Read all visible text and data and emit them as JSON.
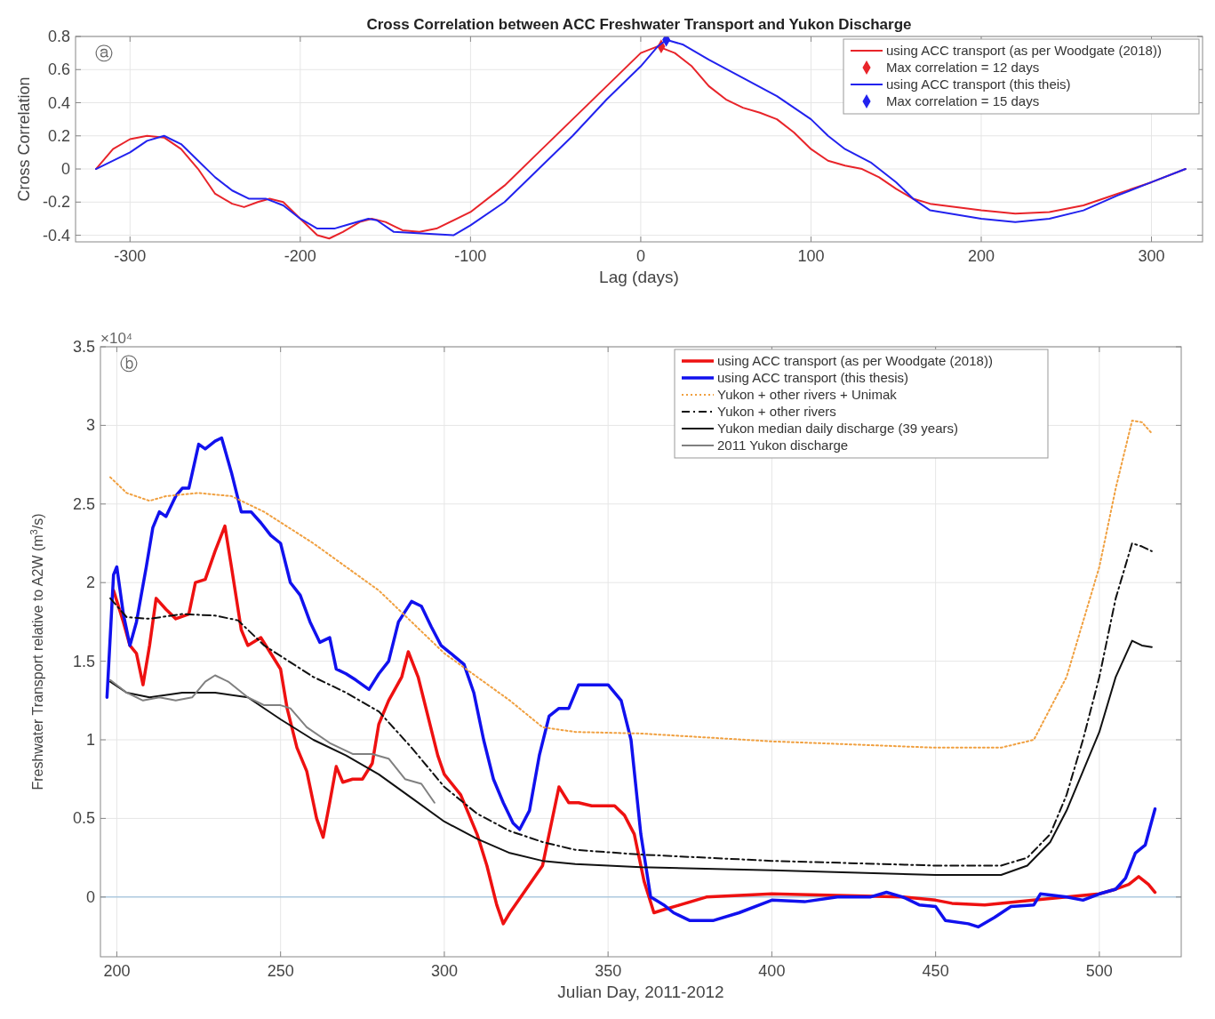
{
  "chart_data": [
    {
      "type": "line",
      "title": "Cross Correlation between ACC Freshwater Transport and Yukon Discharge",
      "xlabel": "Lag (days)",
      "ylabel": "Cross Correlation",
      "xlim": [
        -332,
        330
      ],
      "ylim": [
        -0.44,
        0.8
      ],
      "xticks": [
        -300,
        -200,
        -100,
        0,
        100,
        200,
        300
      ],
      "yticks": [
        -0.4,
        -0.2,
        0,
        0.2,
        0.4,
        0.6,
        0.8
      ],
      "grid": true,
      "legend": "top right",
      "annotations": [
        "ⓐ"
      ],
      "series": [
        {
          "name": "using ACC transport (as per Woodgate (2018))",
          "color": "#e8242a",
          "x": [
            -320,
            -310,
            -300,
            -290,
            -280,
            -270,
            -260,
            -250,
            -240,
            -233,
            -225,
            -218,
            -210,
            -200,
            -190,
            -183,
            -175,
            -165,
            -158,
            -150,
            -140,
            -130,
            -120,
            -100,
            -80,
            -60,
            -40,
            -20,
            0,
            10,
            20,
            30,
            40,
            50,
            60,
            70,
            80,
            90,
            100,
            110,
            120,
            130,
            140,
            150,
            160,
            170,
            200,
            220,
            240,
            260,
            280,
            300,
            320
          ],
          "values": [
            0,
            0.12,
            0.18,
            0.2,
            0.19,
            0.12,
            0,
            -0.15,
            -0.21,
            -0.23,
            -0.2,
            -0.18,
            -0.2,
            -0.3,
            -0.4,
            -0.42,
            -0.38,
            -0.32,
            -0.3,
            -0.32,
            -0.37,
            -0.38,
            -0.36,
            -0.26,
            -0.1,
            0.1,
            0.3,
            0.5,
            0.7,
            0.74,
            0.7,
            0.62,
            0.5,
            0.42,
            0.37,
            0.34,
            0.3,
            0.22,
            0.12,
            0.05,
            0.02,
            0,
            -0.05,
            -0.12,
            -0.18,
            -0.21,
            -0.25,
            -0.27,
            -0.26,
            -0.22,
            -0.15,
            -0.08,
            0
          ]
        },
        {
          "name": "Max correlation = 12 days",
          "type": "scatter",
          "marker": "diamond",
          "color": "#e8242a",
          "x": [
            12
          ],
          "values": [
            0.74
          ]
        },
        {
          "name": "using ACC transport (this theis)",
          "color": "#2222ee",
          "x": [
            -320,
            -300,
            -290,
            -280,
            -270,
            -260,
            -250,
            -240,
            -230,
            -220,
            -210,
            -200,
            -190,
            -180,
            -170,
            -160,
            -155,
            -145,
            -135,
            -120,
            -110,
            -100,
            -80,
            -60,
            -40,
            -20,
            0,
            10,
            15,
            25,
            40,
            60,
            80,
            100,
            110,
            120,
            135,
            150,
            160,
            170,
            200,
            220,
            240,
            260,
            280,
            300,
            320
          ],
          "values": [
            0,
            0.1,
            0.17,
            0.2,
            0.15,
            0.05,
            -0.05,
            -0.13,
            -0.18,
            -0.18,
            -0.22,
            -0.3,
            -0.36,
            -0.36,
            -0.33,
            -0.3,
            -0.31,
            -0.38,
            null,
            null,
            -0.4,
            -0.34,
            -0.2,
            0,
            0.2,
            0.42,
            0.62,
            0.74,
            0.78,
            0.75,
            0.66,
            0.55,
            0.44,
            0.3,
            0.2,
            0.12,
            0.04,
            -0.08,
            -0.18,
            -0.25,
            -0.3,
            -0.32,
            -0.3,
            -0.25,
            -0.16,
            -0.08,
            0
          ]
        },
        {
          "name": "Max correlation = 15 days",
          "type": "scatter",
          "marker": "diamond",
          "color": "#2222ee",
          "x": [
            15
          ],
          "values": [
            0.78
          ]
        }
      ]
    },
    {
      "type": "line",
      "xlabel": "Julian Day, 2011-2012",
      "ylabel": "Freshwater Transport relative to A2W (m$^{3}$/s)",
      "xlim": [
        195,
        525
      ],
      "ylim": [
        -0.38,
        3.5
      ],
      "xticks": [
        200,
        250,
        300,
        350,
        400,
        450,
        500
      ],
      "yticks": [
        0,
        0.5,
        1,
        1.5,
        2,
        2.5,
        3,
        3.5
      ],
      "grid": true,
      "legend": "top right",
      "annotations": [
        "×10⁴",
        "ⓑ"
      ],
      "ref_lines": [
        {
          "axis": "y",
          "value": 0,
          "color": "#8fb8d8"
        }
      ],
      "series": [
        {
          "name": "using ACC transport (as per Woodgate (2018))",
          "color": "#ee1111",
          "x": [
            199,
            202,
            204,
            206,
            208,
            210,
            212,
            215,
            218,
            222,
            224,
            227,
            230,
            233,
            235,
            238,
            240,
            244,
            247,
            250,
            252,
            255,
            258,
            261,
            263,
            265,
            267,
            269,
            272,
            275,
            278,
            280,
            283,
            287,
            289,
            292,
            295,
            298,
            300,
            305,
            310,
            313,
            316,
            318,
            320,
            325,
            330,
            333,
            335,
            338,
            341,
            345,
            352,
            355,
            358,
            361,
            364,
            367,
            372,
            380,
            400,
            420,
            440,
            450,
            455,
            465,
            480,
            490,
            500,
            505,
            509,
            512,
            515,
            517
          ],
          "values": [
            1.95,
            1.75,
            1.6,
            1.55,
            1.35,
            1.6,
            1.9,
            1.83,
            1.77,
            1.8,
            2,
            2.02,
            2.2,
            2.36,
            2.1,
            1.7,
            1.6,
            1.65,
            1.55,
            1.45,
            1.2,
            0.95,
            0.8,
            0.5,
            0.38,
            0.6,
            0.83,
            0.73,
            0.75,
            0.75,
            0.85,
            1.1,
            1.25,
            1.4,
            1.56,
            1.4,
            1.15,
            0.9,
            0.78,
            0.65,
            0.4,
            0.2,
            -0.05,
            -0.17,
            -0.1,
            0.05,
            0.2,
            0.5,
            0.7,
            0.6,
            0.6,
            0.58,
            0.58,
            0.52,
            0.4,
            0.1,
            -0.1,
            -0.08,
            -0.05,
            0,
            0.02,
            0.01,
            0,
            -0.02,
            -0.04,
            -0.05,
            -0.02,
            0,
            0.02,
            0.05,
            0.08,
            0.13,
            0.08,
            0.03
          ]
        },
        {
          "name": "using ACC transport (this thesis)",
          "color": "#1111ee",
          "x": [
            197,
            199,
            200,
            202,
            204,
            206,
            209,
            211,
            213,
            215,
            218,
            220,
            222,
            225,
            227,
            230,
            232,
            235,
            238,
            241,
            244,
            247,
            250,
            253,
            256,
            259,
            262,
            265,
            267,
            270,
            273,
            277,
            280,
            283,
            286,
            290,
            293,
            296,
            299,
            302,
            306,
            309,
            312,
            315,
            318,
            321,
            323,
            326,
            329,
            332,
            335,
            338,
            341,
            345,
            350,
            354,
            357,
            360,
            363,
            367,
            370,
            375,
            382,
            390,
            400,
            410,
            420,
            430,
            435,
            440,
            445,
            450,
            453,
            460,
            463,
            468,
            473,
            480,
            482,
            490,
            495,
            500,
            505,
            508,
            511,
            514,
            517
          ],
          "values": [
            1.27,
            2.05,
            2.1,
            1.8,
            1.6,
            1.75,
            2.1,
            2.35,
            2.45,
            2.42,
            2.55,
            2.6,
            2.6,
            2.88,
            2.85,
            2.9,
            2.92,
            2.7,
            2.45,
            2.45,
            2.38,
            2.3,
            2.25,
            2,
            1.92,
            1.75,
            1.62,
            1.65,
            1.45,
            1.42,
            1.38,
            1.32,
            1.42,
            1.5,
            1.75,
            1.88,
            1.85,
            1.72,
            1.6,
            1.55,
            1.48,
            1.3,
            1,
            0.75,
            0.6,
            0.47,
            0.43,
            0.55,
            0.9,
            1.15,
            1.2,
            1.2,
            1.35,
            1.35,
            1.35,
            1.25,
            1,
            0.4,
            0,
            -0.05,
            -0.1,
            -0.15,
            -0.15,
            -0.1,
            -0.02,
            -0.03,
            0,
            0,
            0.03,
            0,
            -0.05,
            -0.06,
            -0.15,
            -0.17,
            -0.19,
            -0.13,
            -0.06,
            -0.05,
            0.02,
            0,
            -0.02,
            0.02,
            0.05,
            0.12,
            0.28,
            0.33,
            0.56
          ]
        },
        {
          "name": "Yukon + other rivers + Unimak",
          "color": "#f0a040",
          "line_style": "dotted",
          "x": [
            198,
            203,
            210,
            215,
            225,
            235,
            245,
            260,
            280,
            300,
            320,
            330,
            340,
            360,
            400,
            450,
            470,
            480,
            490,
            500,
            505,
            510,
            513,
            516
          ],
          "values": [
            2.67,
            2.57,
            2.52,
            2.55,
            2.57,
            2.55,
            2.45,
            2.25,
            1.95,
            1.55,
            1.25,
            1.08,
            1.05,
            1.04,
            0.99,
            0.95,
            0.95,
            1,
            1.4,
            2.1,
            2.6,
            3.03,
            3.02,
            2.95
          ]
        },
        {
          "name": "Yukon + other rivers",
          "color": "#111111",
          "line_style": "dashed",
          "x": [
            198,
            203,
            210,
            220,
            230,
            237,
            245,
            260,
            270,
            280,
            290,
            300,
            310,
            320,
            330,
            340,
            360,
            400,
            450,
            470,
            478,
            485,
            490,
            495,
            500,
            505,
            510,
            513,
            516
          ],
          "values": [
            1.9,
            1.78,
            1.77,
            1.8,
            1.79,
            1.76,
            1.6,
            1.4,
            1.3,
            1.18,
            0.95,
            0.7,
            0.53,
            0.42,
            0.35,
            0.3,
            0.27,
            0.23,
            0.2,
            0.2,
            0.25,
            0.4,
            0.65,
            1,
            1.4,
            1.9,
            2.25,
            2.23,
            2.2
          ]
        },
        {
          "name": "Yukon median daily discharge (39 years)",
          "color": "#111111",
          "x": [
            198,
            203,
            210,
            220,
            230,
            240,
            250,
            260,
            270,
            280,
            290,
            300,
            310,
            320,
            330,
            340,
            360,
            400,
            450,
            470,
            478,
            485,
            490,
            495,
            500,
            505,
            510,
            513,
            516
          ],
          "values": [
            1.37,
            1.3,
            1.27,
            1.3,
            1.3,
            1.27,
            1.13,
            1,
            0.9,
            0.78,
            0.63,
            0.48,
            0.37,
            0.28,
            0.23,
            0.21,
            0.19,
            0.17,
            0.14,
            0.14,
            0.2,
            0.35,
            0.55,
            0.8,
            1.05,
            1.4,
            1.63,
            1.6,
            1.59
          ]
        },
        {
          "name": "2011 Yukon discharge",
          "color": "#808080",
          "x": [
            198,
            203,
            208,
            213,
            218,
            223,
            227,
            230,
            234,
            240,
            245,
            250,
            253,
            258,
            265,
            272,
            278,
            283,
            288,
            293,
            297
          ],
          "values": [
            1.38,
            1.3,
            1.25,
            1.27,
            1.25,
            1.27,
            1.37,
            1.41,
            1.37,
            1.27,
            1.22,
            1.22,
            1.2,
            1.08,
            0.98,
            0.91,
            0.91,
            0.88,
            0.75,
            0.72,
            0.6
          ]
        }
      ]
    }
  ]
}
